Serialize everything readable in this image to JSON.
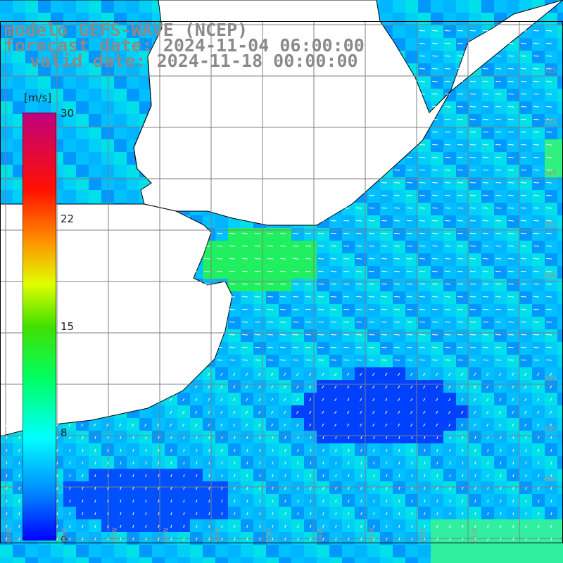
{
  "title": {
    "line1": "modelo GEFS-WAVE (NCEP)",
    "line2": "forecast date: 2024-11-04 06:00:00",
    "line3": "valid date: 2024-11-18 00:00:00"
  },
  "colorbar": {
    "unit": "[m/s]",
    "ticks": [
      "30",
      "22",
      "15",
      "8",
      "0"
    ],
    "tick_values": [
      30,
      22,
      15,
      8,
      0
    ],
    "colors": [
      "#0000ff",
      "#00a0ff",
      "#00ffff",
      "#00ff40",
      "#40ff00",
      "#ffff00",
      "#ff8000",
      "#ff0000",
      "#c00080"
    ]
  },
  "lat_labels": [
    "32S",
    "33S",
    "34S",
    "35S",
    "36S",
    "38S",
    "39S",
    "40S"
  ],
  "lon_labels": [
    "60W",
    "59W",
    "58W",
    "57W",
    "56W",
    "55W",
    "54W",
    "53W",
    "52W",
    "51W"
  ],
  "map": {
    "ocean_dominant": "west-southwest wind, 4-10 m/s",
    "land_color": "#ffffff",
    "grid_color": "#808080"
  }
}
